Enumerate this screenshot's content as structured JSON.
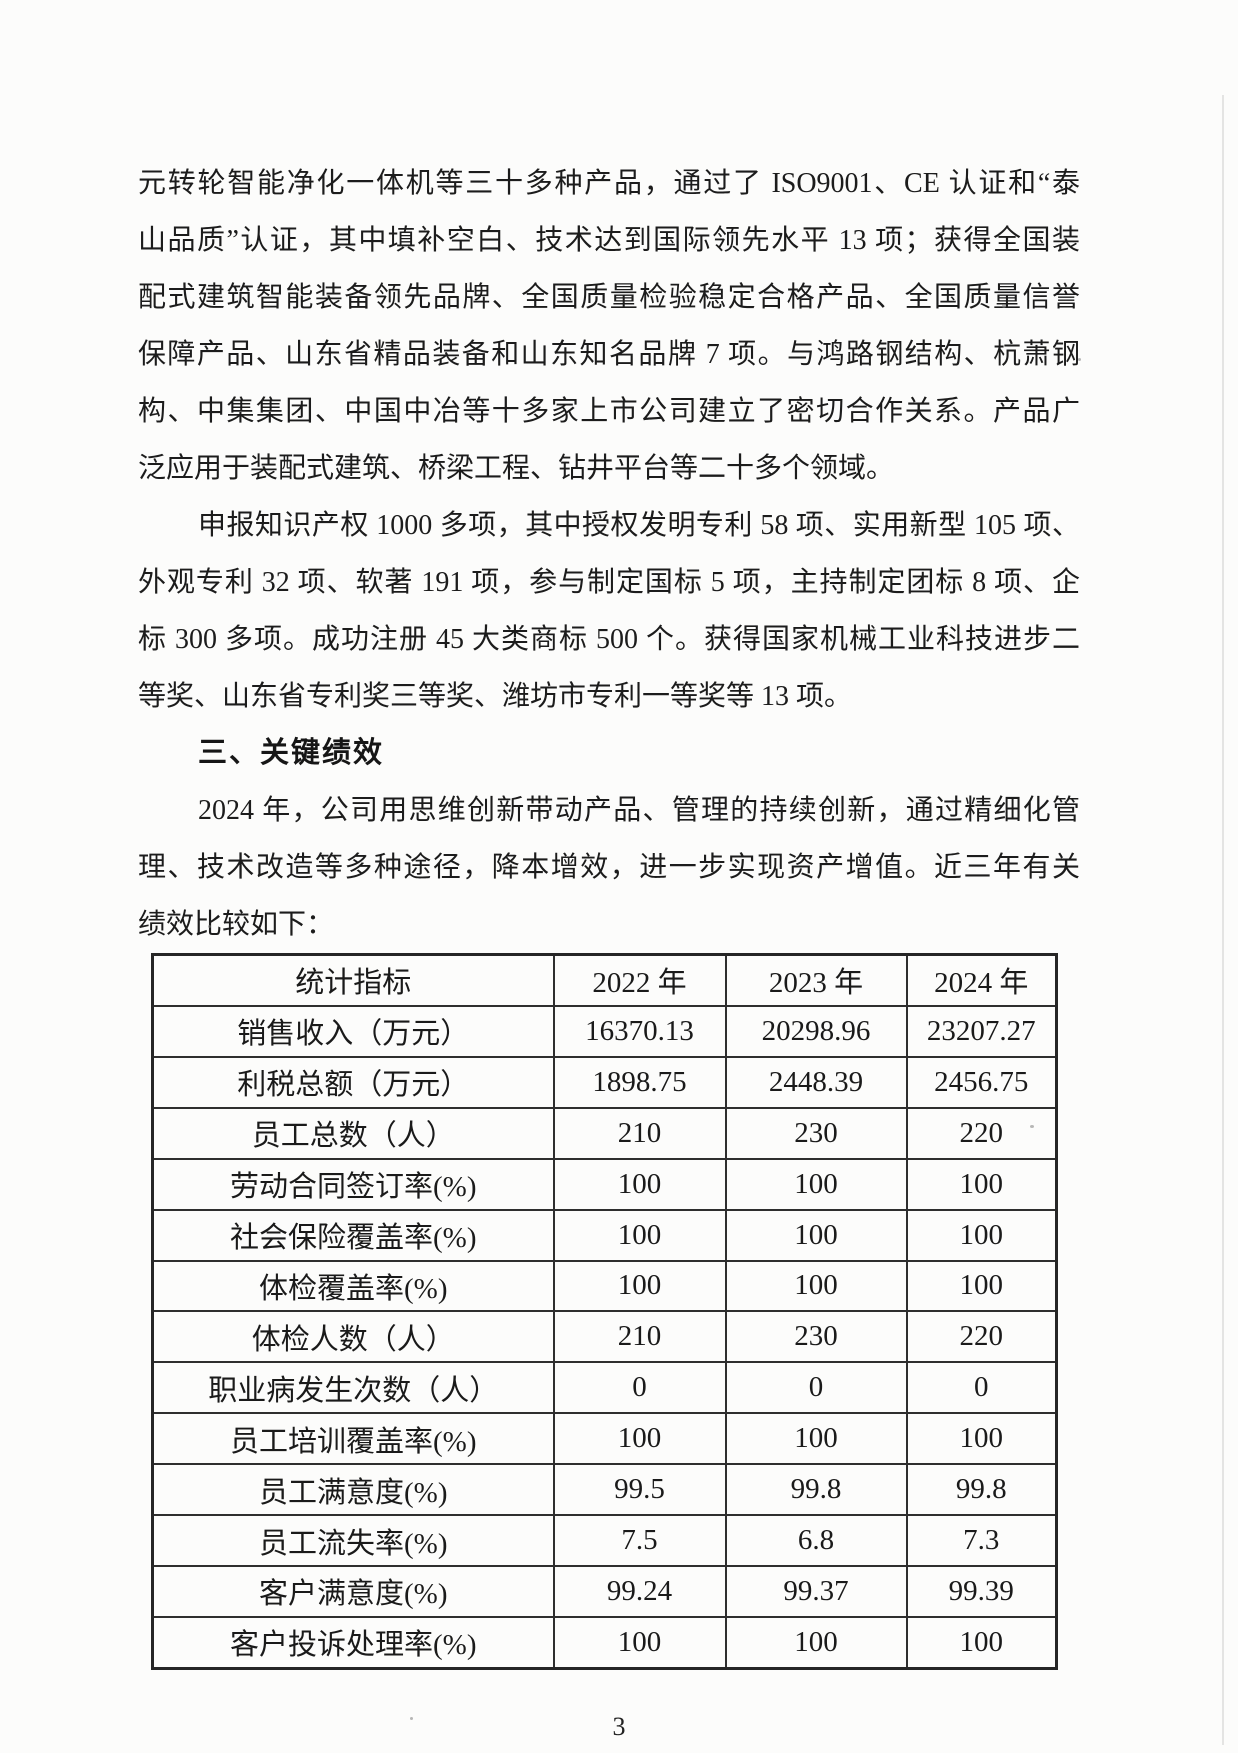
{
  "body": {
    "p1_lines": [
      "元转轮智能净化一体机等三十多种产品，通过了 ISO9001、CE 认证和“泰",
      "山品质”认证，其中填补空白、技术达到国际领先水平 13 项；获得全国装",
      "配式建筑智能装备领先品牌、全国质量检验稳定合格产品、全国质量信誉",
      "保障产品、山东省精品装备和山东知名品牌 7 项。与鸿路钢结构、杭萧钢",
      "构、中集集团、中国中冶等十多家上市公司建立了密切合作关系。产品广",
      "泛应用于装配式建筑、桥梁工程、钻井平台等二十多个领域。"
    ],
    "p2_lines": [
      "申报知识产权 1000 多项，其中授权发明专利 58 项、实用新型 105 项、",
      "外观专利 32 项、软著 191 项，参与制定国标 5 项，主持制定团标 8 项、企",
      "标 300 多项。成功注册 45 大类商标 500 个。获得国家机械工业科技进步二",
      "等奖、山东省专利奖三等奖、潍坊市专利一等奖等 13 项。"
    ],
    "heading": "三、关键绩效",
    "p3_lines": [
      "2024 年，公司用思维创新带动产品、管理的持续创新，通过精细化管",
      "理、技术改造等多种途径，降本增效，进一步实现资产增值。近三年有关"
    ],
    "p4_line": "绩效比较如下："
  },
  "table": {
    "headers": [
      "统计指标",
      "2022 年",
      "2023 年",
      "2024 年"
    ],
    "rows": [
      {
        "indicator": "销售收入（万元）",
        "v2022": "16370.13",
        "v2023": "20298.96",
        "v2024": "23207.27"
      },
      {
        "indicator": "利税总额（万元）",
        "v2022": "1898.75",
        "v2023": "2448.39",
        "v2024": "2456.75"
      },
      {
        "indicator": "员工总数（人）",
        "v2022": "210",
        "v2023": "230",
        "v2024": "220"
      },
      {
        "indicator": "劳动合同签订率(%)",
        "v2022": "100",
        "v2023": "100",
        "v2024": "100"
      },
      {
        "indicator": "社会保险覆盖率(%)",
        "v2022": "100",
        "v2023": "100",
        "v2024": "100"
      },
      {
        "indicator": "体检覆盖率(%)",
        "v2022": "100",
        "v2023": "100",
        "v2024": "100"
      },
      {
        "indicator": "体检人数（人）",
        "v2022": "210",
        "v2023": "230",
        "v2024": "220"
      },
      {
        "indicator": "职业病发生次数（人）",
        "v2022": "0",
        "v2023": "0",
        "v2024": "0"
      },
      {
        "indicator": "员工培训覆盖率(%)",
        "v2022": "100",
        "v2023": "100",
        "v2024": "100"
      },
      {
        "indicator": "员工满意度(%)",
        "v2022": "99.5",
        "v2023": "99.8",
        "v2024": "99.8"
      },
      {
        "indicator": "员工流失率(%)",
        "v2022": "7.5",
        "v2023": "6.8",
        "v2024": "7.3"
      },
      {
        "indicator": "客户满意度(%)",
        "v2022": "99.24",
        "v2023": "99.37",
        "v2024": "99.39"
      },
      {
        "indicator": "客户投诉处理率(%)",
        "v2022": "100",
        "v2023": "100",
        "v2024": "100"
      }
    ]
  },
  "footer": {
    "page_number": "3"
  }
}
